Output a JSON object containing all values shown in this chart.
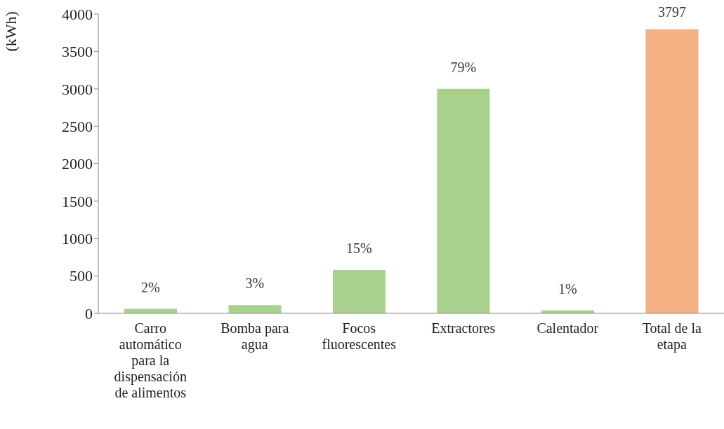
{
  "chart_data": {
    "type": "bar",
    "ylabel": "(kWh)",
    "categories": [
      "Carro automático para la dispensación de alimentos",
      "Bomba para agua",
      "Focos fluorescentes",
      "Extractores",
      "Calentador",
      "Total de la etapa"
    ],
    "values": [
      60,
      110,
      580,
      3000,
      40,
      3797
    ],
    "colors": [
      "#a9d18e",
      "#a9d18e",
      "#a9d18e",
      "#a9d18e",
      "#a9d18e",
      "#f4b183"
    ],
    "value_labels": [
      null,
      null,
      null,
      null,
      null,
      "3797"
    ],
    "annotations": [
      {
        "text": "2%",
        "x": "Carro automático para la dispensación de alimentos",
        "y": 60
      },
      {
        "text": "3%",
        "x": "Bomba para agua",
        "y": 110
      },
      {
        "text": "15%",
        "x": "Focos fluorescentes",
        "y": 580
      },
      {
        "text": "79%",
        "x": "Extractores",
        "y": 3000
      },
      {
        "text": "1%",
        "x": "Calentador",
        "y": 40
      }
    ],
    "ylim": [
      0,
      4000
    ],
    "yticks": [
      0,
      500,
      1000,
      1500,
      2000,
      2500,
      3000,
      3500,
      4000
    ],
    "grid": false
  }
}
